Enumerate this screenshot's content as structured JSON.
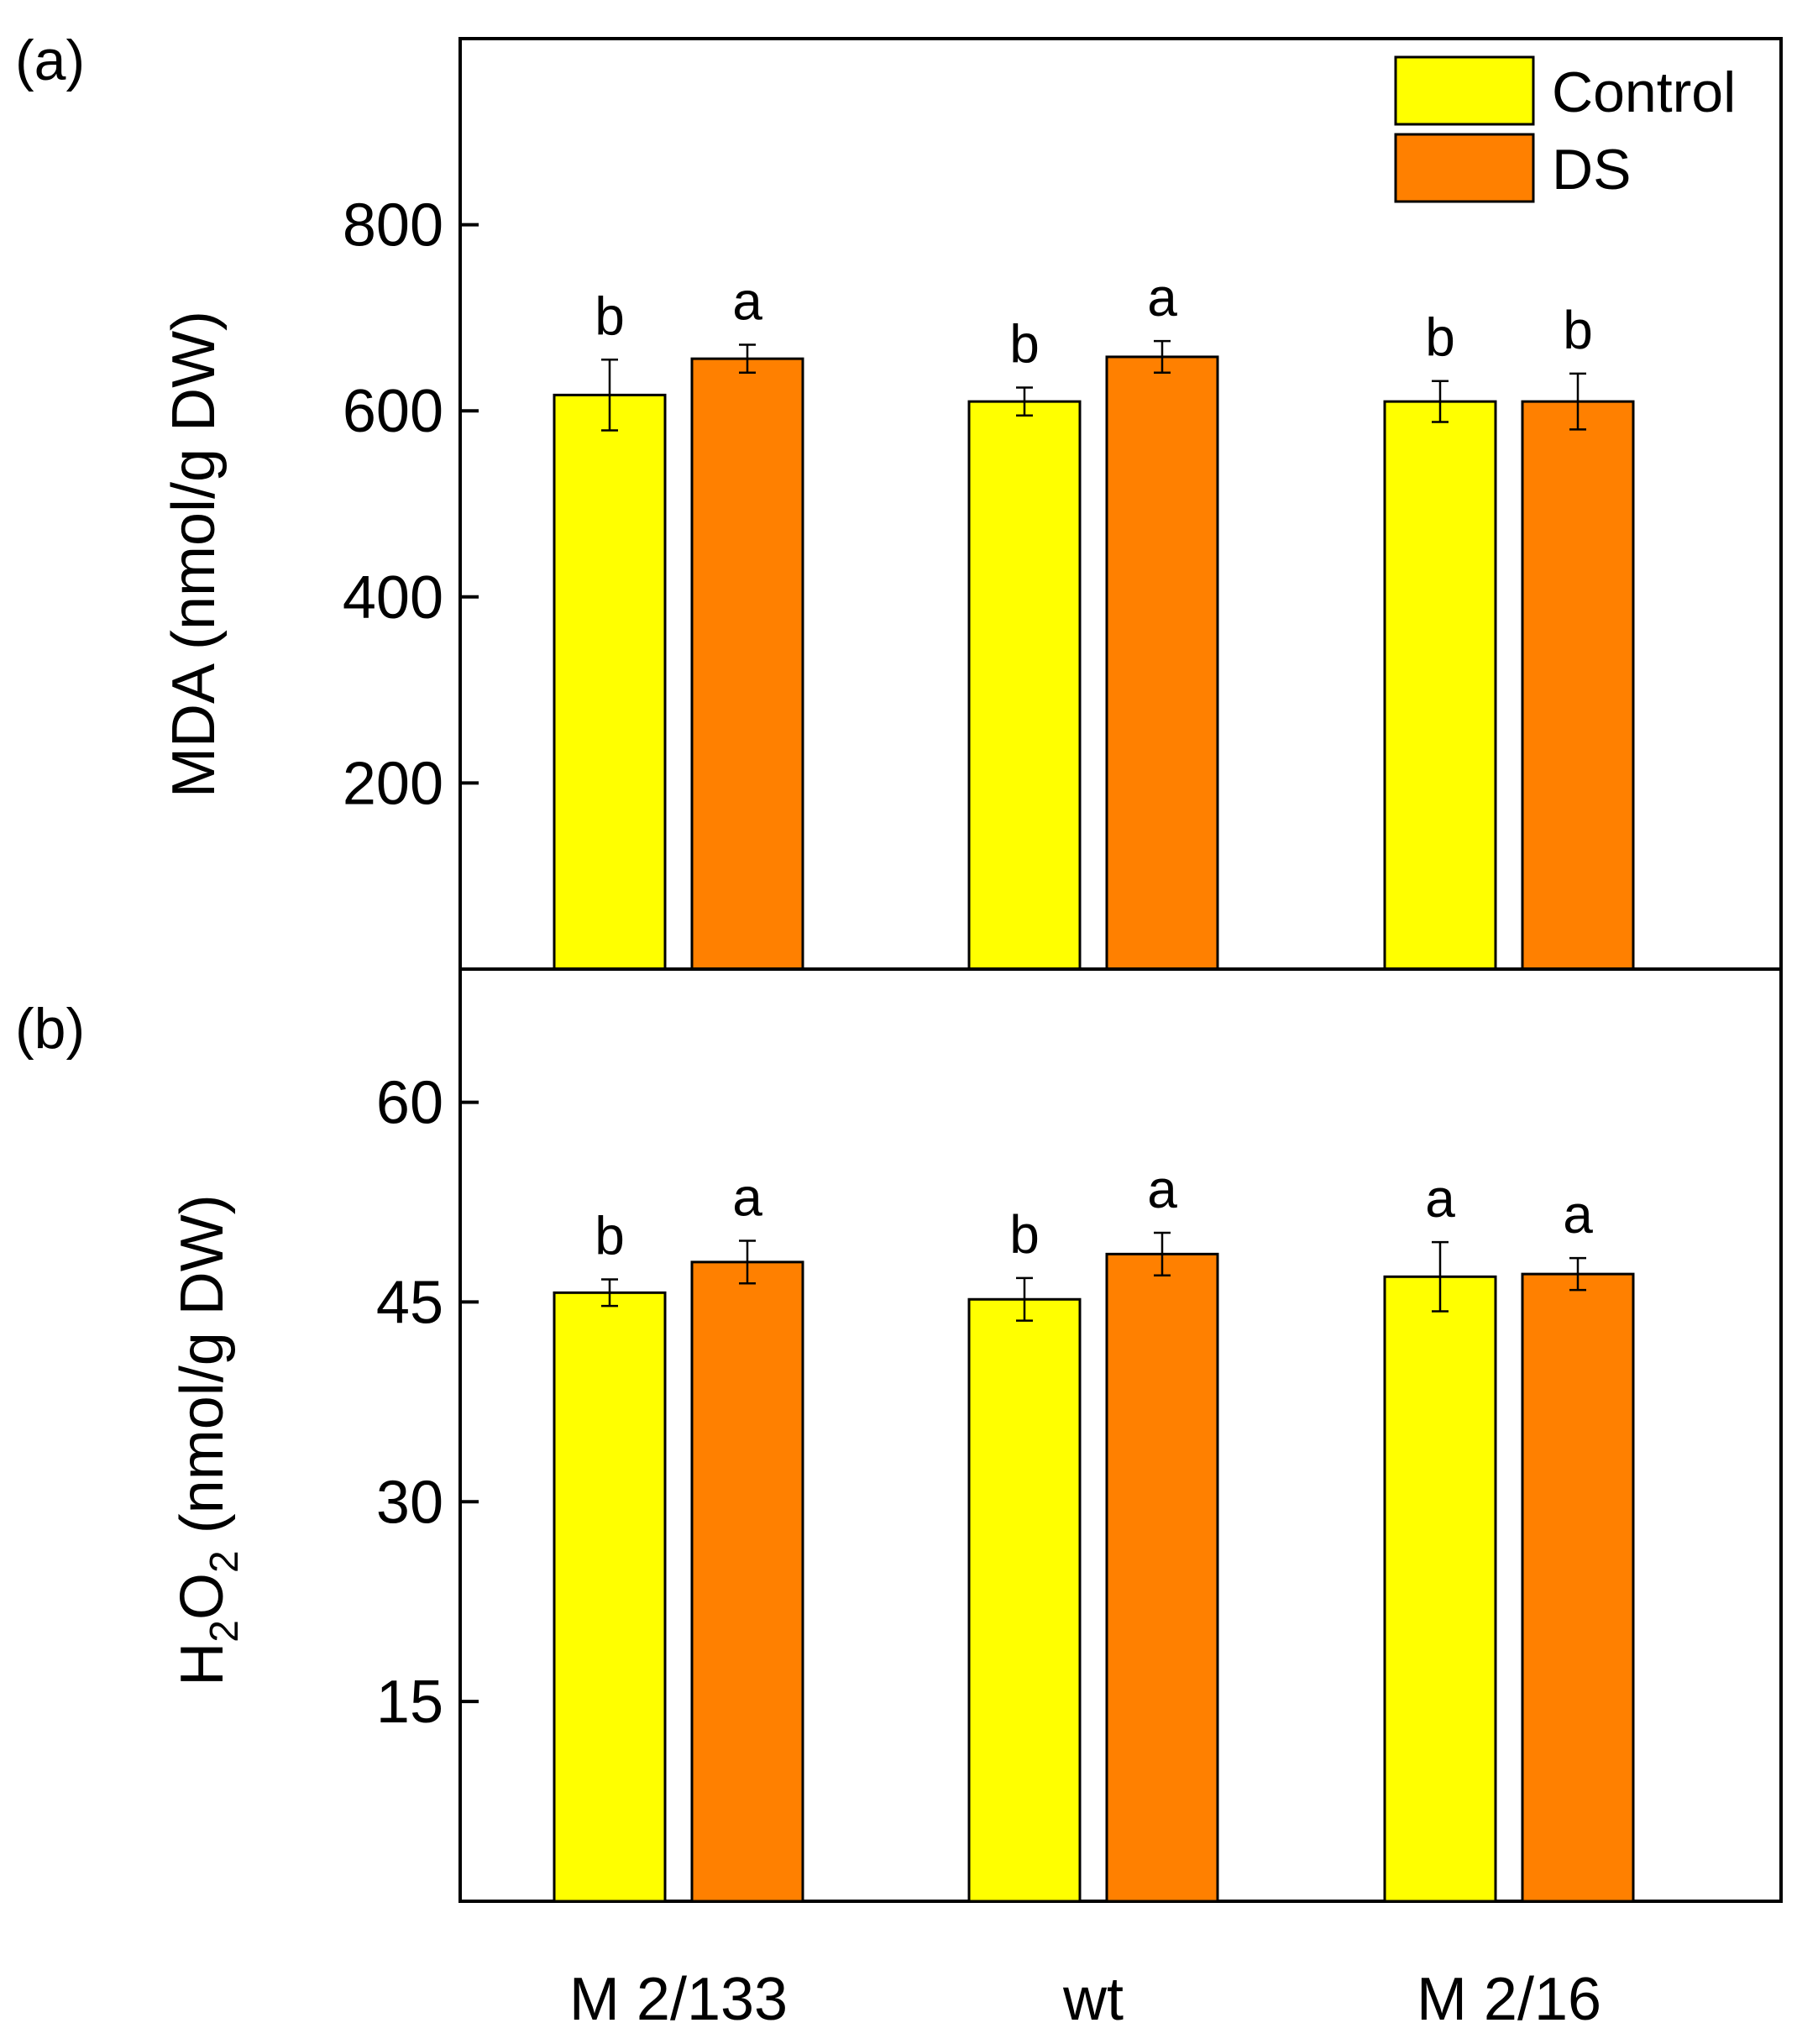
{
  "chart_data": [
    {
      "type": "bar",
      "panel_label": "(a)",
      "ylabel": "MDA (nmol/g DW)",
      "ylim": [
        0,
        1000
      ],
      "yticks": [
        200,
        400,
        600,
        800
      ],
      "categories": [
        "M 2/133",
        "wt",
        "M 2/16"
      ],
      "series": [
        {
          "name": "Control",
          "color": "#ffff00",
          "values": [
            617,
            610,
            610
          ],
          "errors": [
            38,
            15,
            22
          ],
          "letters": [
            "b",
            "b",
            "b"
          ]
        },
        {
          "name": "DS",
          "color": "#ff8000",
          "values": [
            656,
            658,
            610
          ],
          "errors": [
            15,
            17,
            30
          ],
          "letters": [
            "a",
            "a",
            "b"
          ]
        }
      ],
      "legend": {
        "placement": "top-right",
        "entries": [
          "Control",
          "DS"
        ]
      },
      "grid": false
    },
    {
      "type": "bar",
      "panel_label": "(b)",
      "ylabel_main": "H",
      "ylabel_sub1": "2",
      "ylabel_mid": "O",
      "ylabel_sub2": "2",
      "ylabel_rest": " (nmol/g DW)",
      "ylim": [
        0,
        70
      ],
      "yticks": [
        15,
        30,
        45,
        60
      ],
      "categories": [
        "M 2/133",
        "wt",
        "M 2/16"
      ],
      "series": [
        {
          "name": "Control",
          "color": "#ffff00",
          "values": [
            45.7,
            45.2,
            46.9
          ],
          "errors": [
            1.0,
            1.6,
            2.6
          ],
          "letters": [
            "b",
            "b",
            "a"
          ]
        },
        {
          "name": "DS",
          "color": "#ff8000",
          "values": [
            48.0,
            48.6,
            47.1
          ],
          "errors": [
            1.6,
            1.6,
            1.2
          ],
          "letters": [
            "a",
            "a",
            "a"
          ]
        }
      ],
      "grid": false
    }
  ]
}
